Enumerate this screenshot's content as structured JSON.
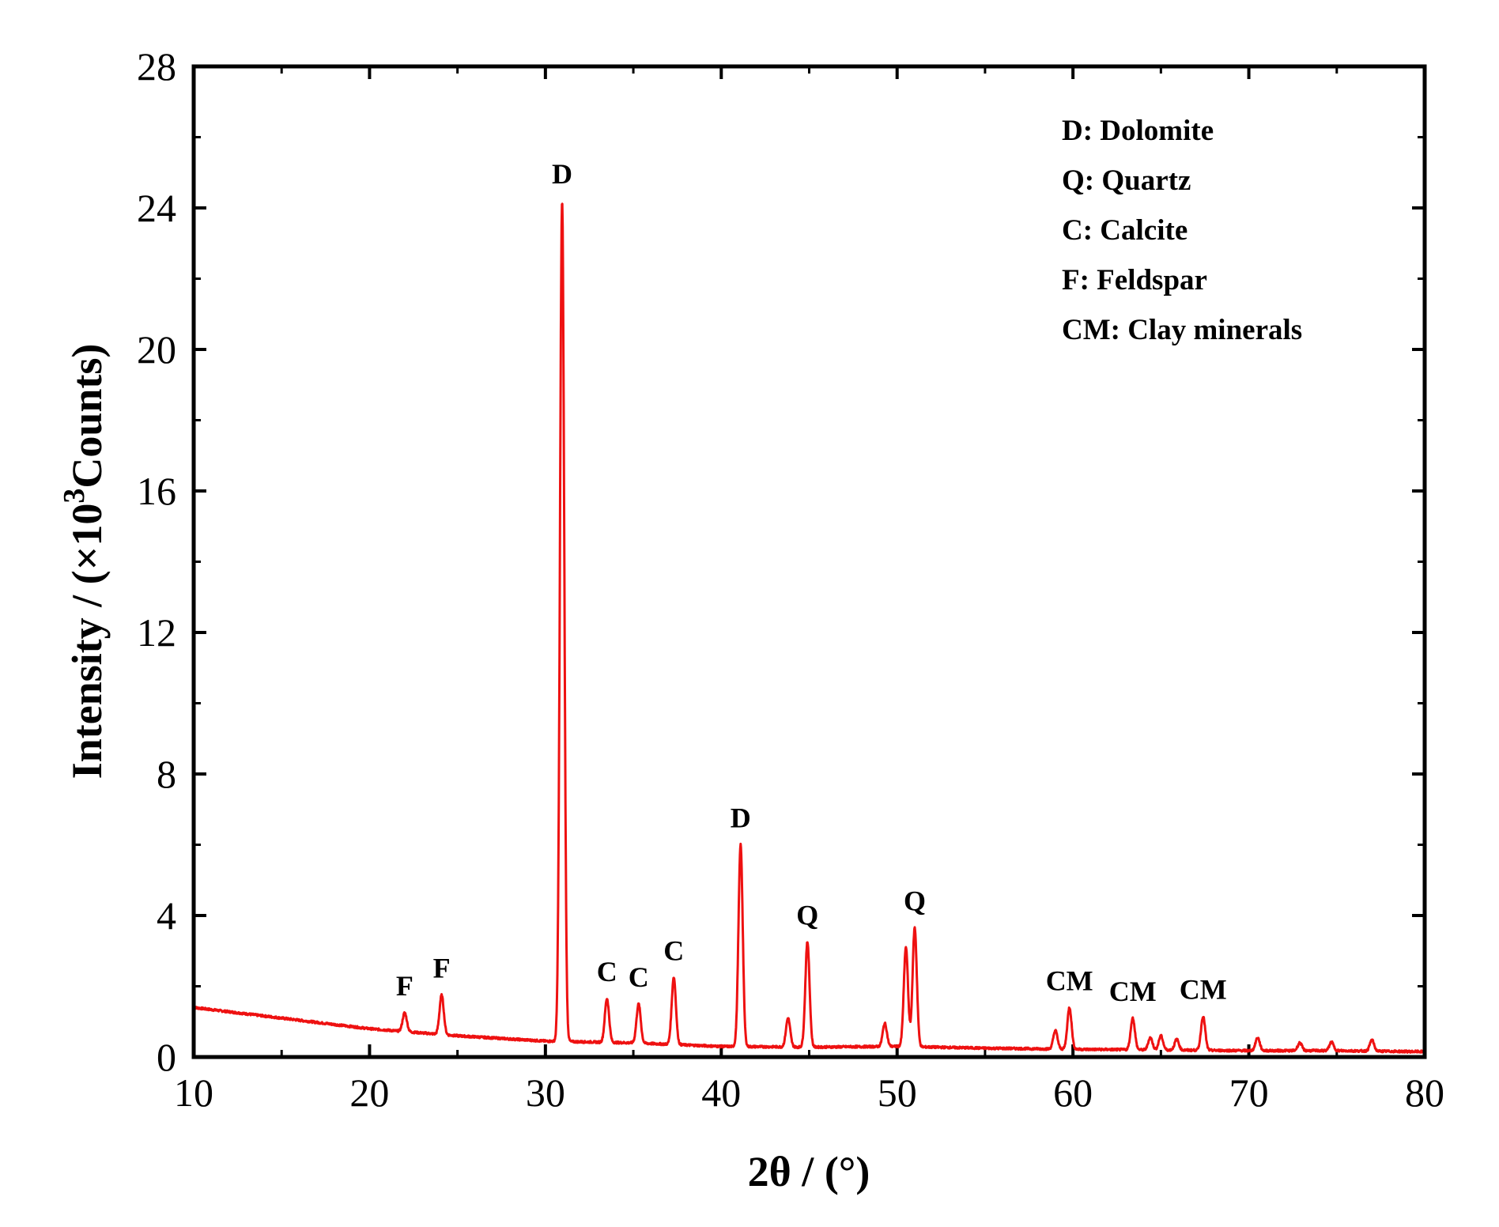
{
  "chart_data": {
    "type": "line",
    "title": "",
    "xlabel": "2θ / (°)",
    "ylabel_parts": [
      "Intensity / (×10",
      "3",
      "Counts)"
    ],
    "xlim": [
      10,
      80
    ],
    "ylim": [
      0,
      28
    ],
    "xticks": [
      10,
      20,
      30,
      40,
      50,
      60,
      70,
      80
    ],
    "yticks": [
      0,
      4,
      8,
      12,
      16,
      20,
      24,
      28
    ],
    "grid": false,
    "line_color": "#ee1111",
    "baseline": [
      [
        10,
        1.4
      ],
      [
        15,
        1.1
      ],
      [
        20,
        0.8
      ],
      [
        25,
        0.6
      ],
      [
        30,
        0.45
      ],
      [
        35,
        0.4
      ],
      [
        40,
        0.3
      ],
      [
        45,
        0.28
      ],
      [
        50,
        0.3
      ],
      [
        55,
        0.25
      ],
      [
        60,
        0.22
      ],
      [
        65,
        0.2
      ],
      [
        70,
        0.18
      ],
      [
        75,
        0.18
      ],
      [
        80,
        0.15
      ]
    ],
    "peaks": [
      {
        "x": 22.0,
        "y": 1.25,
        "label": "F"
      },
      {
        "x": 24.1,
        "y": 1.75,
        "label": "F"
      },
      {
        "x": 30.95,
        "y": 24.2,
        "label": "D"
      },
      {
        "x": 33.5,
        "y": 1.65,
        "label": "C"
      },
      {
        "x": 35.3,
        "y": 1.5,
        "label": "C"
      },
      {
        "x": 37.3,
        "y": 2.25,
        "label": "C"
      },
      {
        "x": 41.1,
        "y": 6.0,
        "label": "D"
      },
      {
        "x": 43.8,
        "y": 1.1,
        "label": ""
      },
      {
        "x": 44.9,
        "y": 3.25,
        "label": "Q"
      },
      {
        "x": 49.3,
        "y": 0.95,
        "label": ""
      },
      {
        "x": 50.5,
        "y": 3.1,
        "label": ""
      },
      {
        "x": 51.0,
        "y": 3.65,
        "label": "Q"
      },
      {
        "x": 59.0,
        "y": 0.75,
        "label": ""
      },
      {
        "x": 59.8,
        "y": 1.4,
        "label": "CM"
      },
      {
        "x": 63.4,
        "y": 1.1,
        "label": "CM"
      },
      {
        "x": 64.4,
        "y": 0.55,
        "label": ""
      },
      {
        "x": 65.0,
        "y": 0.6,
        "label": ""
      },
      {
        "x": 65.9,
        "y": 0.5,
        "label": ""
      },
      {
        "x": 67.4,
        "y": 1.15,
        "label": "CM"
      },
      {
        "x": 70.5,
        "y": 0.55,
        "label": ""
      },
      {
        "x": 72.9,
        "y": 0.4,
        "label": ""
      },
      {
        "x": 74.7,
        "y": 0.42,
        "label": ""
      },
      {
        "x": 77.0,
        "y": 0.48,
        "label": ""
      }
    ],
    "legend_position": "top-right",
    "legend": [
      "D: Dolomite",
      "Q: Quartz",
      "C: Calcite",
      "F: Feldspar",
      "CM: Clay minerals"
    ]
  }
}
